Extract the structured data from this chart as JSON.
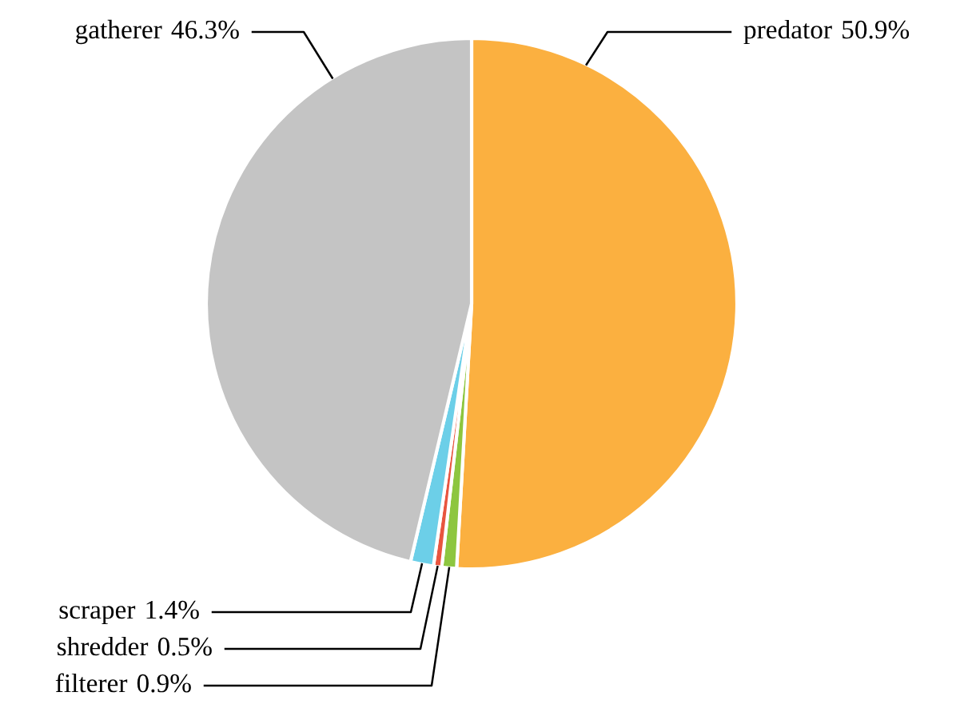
{
  "chart_data": {
    "type": "pie",
    "categories": [
      "predator",
      "filterer",
      "shredder",
      "scraper",
      "gatherer"
    ],
    "values": [
      50.9,
      0.9,
      0.5,
      1.4,
      46.3
    ],
    "colors": [
      "#fbb040",
      "#8dc63f",
      "#e8553f",
      "#6ccfe8",
      "#c4c4c4"
    ],
    "value_labels": [
      "50.9%",
      "0.9%",
      "0.5%",
      "1.4%",
      "46.3%"
    ]
  }
}
